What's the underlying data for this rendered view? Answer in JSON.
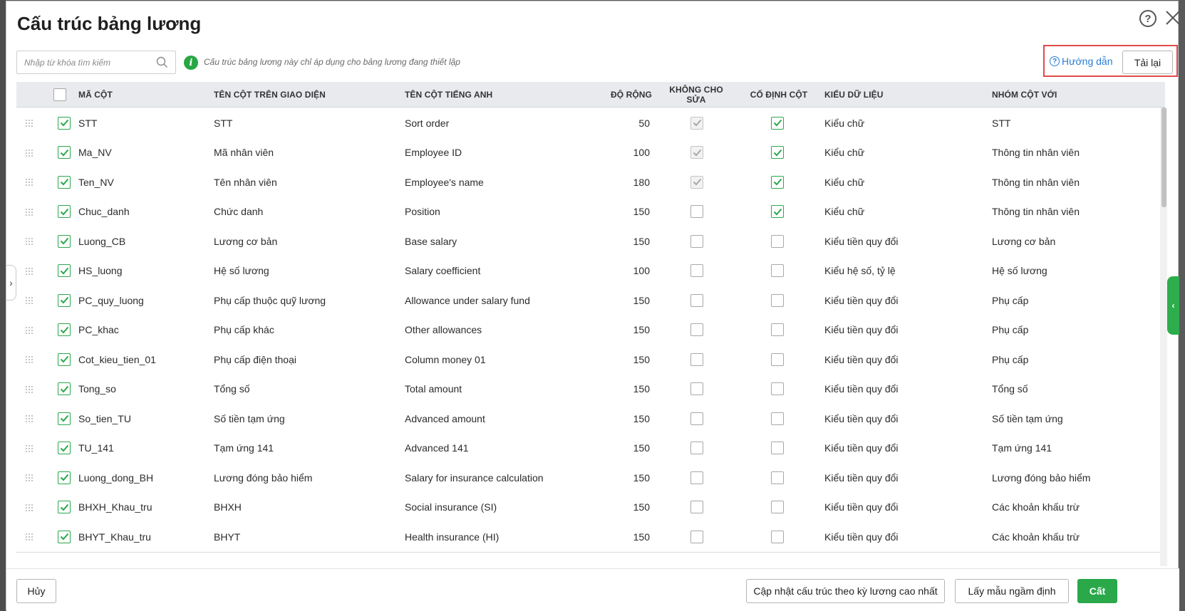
{
  "dialog": {
    "title": "Cấu trúc bảng lương"
  },
  "search": {
    "placeholder": "Nhập từ khóa tìm kiếm"
  },
  "info": {
    "text": "Cấu trúc bảng lương này chỉ áp dụng cho bảng lương đang thiết lập"
  },
  "toolbar": {
    "guide_label": "Hướng dẫn",
    "reload_label": "Tải lại"
  },
  "columns": {
    "code": "MÃ CỘT",
    "ui_name": "TÊN CỘT TRÊN GIAO DIỆN",
    "en_name": "TÊN CỘT TIẾNG ANH",
    "width": "ĐỘ RỘNG",
    "no_edit": "KHÔNG CHO SỬA",
    "pinned": "CỐ ĐỊNH CỘT",
    "data_type": "KIỂU DỮ LIỆU",
    "group": "NHÓM CỘT VỚI"
  },
  "rows": [
    {
      "code": "STT",
      "ui_name": "STT",
      "en_name": "Sort order",
      "width": "50",
      "no_edit": "grey",
      "pinned": true,
      "data_type": "Kiểu chữ",
      "group": "STT"
    },
    {
      "code": "Ma_NV",
      "ui_name": "Mã nhân viên",
      "en_name": "Employee ID",
      "width": "100",
      "no_edit": "grey",
      "pinned": true,
      "data_type": "Kiểu chữ",
      "group": "Thông tin nhân viên"
    },
    {
      "code": "Ten_NV",
      "ui_name": "Tên nhân viên",
      "en_name": "Employee's name",
      "width": "180",
      "no_edit": "grey",
      "pinned": true,
      "data_type": "Kiểu chữ",
      "group": "Thông tin nhân viên"
    },
    {
      "code": "Chuc_danh",
      "ui_name": "Chức danh",
      "en_name": "Position",
      "width": "150",
      "no_edit": "off",
      "pinned": true,
      "data_type": "Kiểu chữ",
      "group": "Thông tin nhân viên"
    },
    {
      "code": "Luong_CB",
      "ui_name": "Lương cơ bản",
      "en_name": "Base salary",
      "width": "150",
      "no_edit": "off",
      "pinned": false,
      "data_type": "Kiểu tiền quy đổi",
      "group": "Lương cơ bản"
    },
    {
      "code": "HS_luong",
      "ui_name": "Hệ số lương",
      "en_name": "Salary coefficient",
      "width": "100",
      "no_edit": "off",
      "pinned": false,
      "data_type": "Kiểu hệ số, tỷ lệ",
      "group": "Hệ số lương"
    },
    {
      "code": "PC_quy_luong",
      "ui_name": "Phụ cấp thuộc quỹ lương",
      "en_name": "Allowance under salary fund",
      "width": "150",
      "no_edit": "off",
      "pinned": false,
      "data_type": "Kiểu tiền quy đổi",
      "group": "Phụ cấp"
    },
    {
      "code": "PC_khac",
      "ui_name": "Phụ cấp khác",
      "en_name": "Other allowances",
      "width": "150",
      "no_edit": "off",
      "pinned": false,
      "data_type": "Kiểu tiền quy đổi",
      "group": "Phụ cấp"
    },
    {
      "code": "Cot_kieu_tien_01",
      "ui_name": "Phụ cấp điện thoại",
      "en_name": "Column money 01",
      "width": "150",
      "no_edit": "off",
      "pinned": false,
      "data_type": "Kiểu tiền quy đổi",
      "group": "Phụ cấp"
    },
    {
      "code": "Tong_so",
      "ui_name": "Tổng số",
      "en_name": "Total amount",
      "width": "150",
      "no_edit": "off",
      "pinned": false,
      "data_type": "Kiểu tiền quy đổi",
      "group": "Tổng số"
    },
    {
      "code": "So_tien_TU",
      "ui_name": "Số tiền tạm ứng",
      "en_name": "Advanced amount",
      "width": "150",
      "no_edit": "off",
      "pinned": false,
      "data_type": "Kiểu tiền quy đổi",
      "group": "Số tiền tạm ứng"
    },
    {
      "code": "TU_141",
      "ui_name": "Tạm ứng 141",
      "en_name": "Advanced 141",
      "width": "150",
      "no_edit": "off",
      "pinned": false,
      "data_type": "Kiểu tiền quy đổi",
      "group": "Tạm ứng 141"
    },
    {
      "code": "Luong_dong_BH",
      "ui_name": "Lương đóng bảo hiểm",
      "en_name": "Salary for insurance calculation",
      "width": "150",
      "no_edit": "off",
      "pinned": false,
      "data_type": "Kiểu tiền quy đổi",
      "group": "Lương đóng bảo hiểm"
    },
    {
      "code": "BHXH_Khau_tru",
      "ui_name": "BHXH",
      "en_name": "Social insurance (SI)",
      "width": "150",
      "no_edit": "off",
      "pinned": false,
      "data_type": "Kiểu tiền quy đổi",
      "group": "Các khoản khấu trừ"
    },
    {
      "code": "BHYT_Khau_tru",
      "ui_name": "BHYT",
      "en_name": "Health insurance (HI)",
      "width": "150",
      "no_edit": "off",
      "pinned": false,
      "data_type": "Kiểu tiền quy đổi",
      "group": "Các khoản khấu trừ"
    }
  ],
  "footer": {
    "cancel_label": "Hủy",
    "update_label": "Cập nhật cấu trúc theo kỳ lương cao nhất",
    "default_label": "Lấy mẫu ngầm định",
    "save_label": "Cất"
  },
  "colors": {
    "accent_green": "#2aa84a",
    "link_blue": "#2a7cd4",
    "highlight_red": "#e04b4b"
  }
}
